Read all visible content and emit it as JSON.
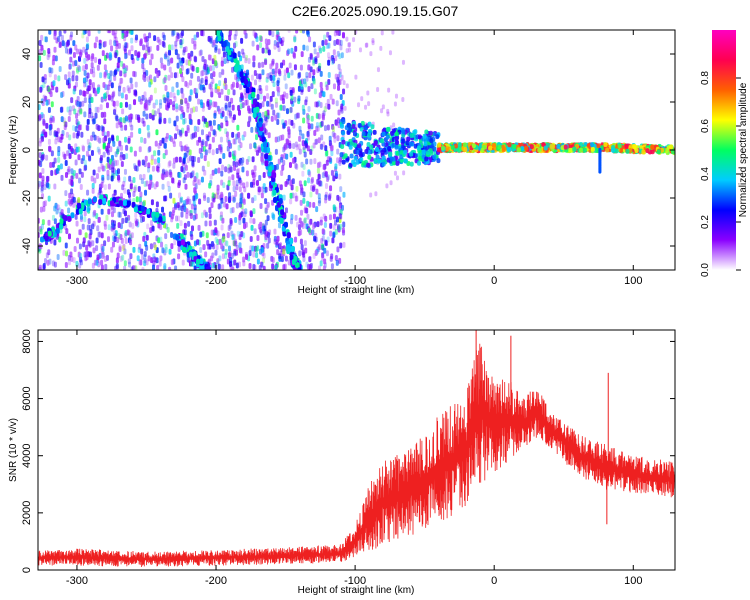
{
  "title": "C2E6.2025.090.19.15.G07",
  "chart_data": [
    {
      "type": "heatmap",
      "xlabel": "Height of straight line (km)",
      "ylabel": "Frequency (Hz)",
      "xlim": [
        -328,
        130
      ],
      "ylim": [
        -50,
        50
      ],
      "xticks": [
        -300,
        -200,
        -100,
        0,
        100
      ],
      "yticks": [
        -40,
        -20,
        0,
        20,
        40
      ],
      "grid": false,
      "colorbar": {
        "label": "Normalized spectral amplitude",
        "range": [
          0,
          1
        ],
        "ticks": [
          0.0,
          0.2,
          0.4,
          0.6,
          0.8
        ],
        "tick_labels": [
          "0.0",
          "0.2",
          "0.4",
          "0.6",
          "0.8"
        ],
        "stops": [
          "#ffffff",
          "#8a00ff",
          "#0000ff",
          "#00ccff",
          "#00ff60",
          "#ffff00",
          "#ff6000",
          "#ff0050",
          "#ff00c0"
        ]
      },
      "features": [
        {
          "name": "diagonal track 1",
          "points": [
            [
              -200,
              50
            ],
            [
              -175,
              25
            ],
            [
              -160,
              -10
            ],
            [
              -145,
              -45
            ],
            [
              -140,
              -50
            ]
          ]
        },
        {
          "name": "diagonal track 2",
          "points": [
            [
              -228,
              -36
            ],
            [
              -215,
              -45
            ],
            [
              -205,
              -50
            ]
          ]
        },
        {
          "name": "low arc",
          "points": [
            [
              -325,
              -38
            ],
            [
              -315,
              -33
            ],
            [
              -290,
              -20
            ],
            [
              -265,
              -22
            ],
            [
              -245,
              -27
            ],
            [
              -235,
              -30
            ]
          ]
        },
        {
          "name": "direct signal band",
          "points": [
            [
              -110,
              3
            ],
            [
              -60,
              1
            ],
            [
              -20,
              1
            ],
            [
              0,
              1
            ],
            [
              40,
              1
            ],
            [
              80,
              1
            ],
            [
              130,
              0
            ]
          ]
        }
      ]
    },
    {
      "type": "line",
      "xlabel": "Height of straight line (km)",
      "ylabel": "SNR (10 * v/v)",
      "xlim": [
        -328,
        130
      ],
      "ylim": [
        0,
        8400
      ],
      "xticks": [
        -300,
        -200,
        -100,
        0,
        100
      ],
      "yticks": [
        0,
        2000,
        4000,
        6000,
        8000
      ],
      "grid": false,
      "color": "#ee2020",
      "envelope": {
        "x": [
          -328,
          -300,
          -250,
          -200,
          -150,
          -110,
          -100,
          -90,
          -80,
          -60,
          -40,
          -20,
          -10,
          0,
          10,
          20,
          30,
          40,
          60,
          80,
          100,
          130
        ],
        "low": [
          150,
          150,
          100,
          150,
          200,
          250,
          400,
          600,
          900,
          1200,
          1600,
          2200,
          3000,
          3400,
          3800,
          4200,
          4500,
          4300,
          3300,
          2800,
          2700,
          2500
        ],
        "high": [
          700,
          750,
          650,
          700,
          800,
          900,
          1600,
          3000,
          3800,
          4300,
          5400,
          6200,
          8300,
          6500,
          6800,
          6000,
          6500,
          5600,
          4800,
          4400,
          4000,
          3800
        ]
      },
      "spikes": [
        {
          "x": -13,
          "y": 8400
        },
        {
          "x": 12,
          "y": 8200
        },
        {
          "x": 82,
          "y": 6900
        },
        {
          "x": 81,
          "y": 1600
        }
      ]
    }
  ]
}
